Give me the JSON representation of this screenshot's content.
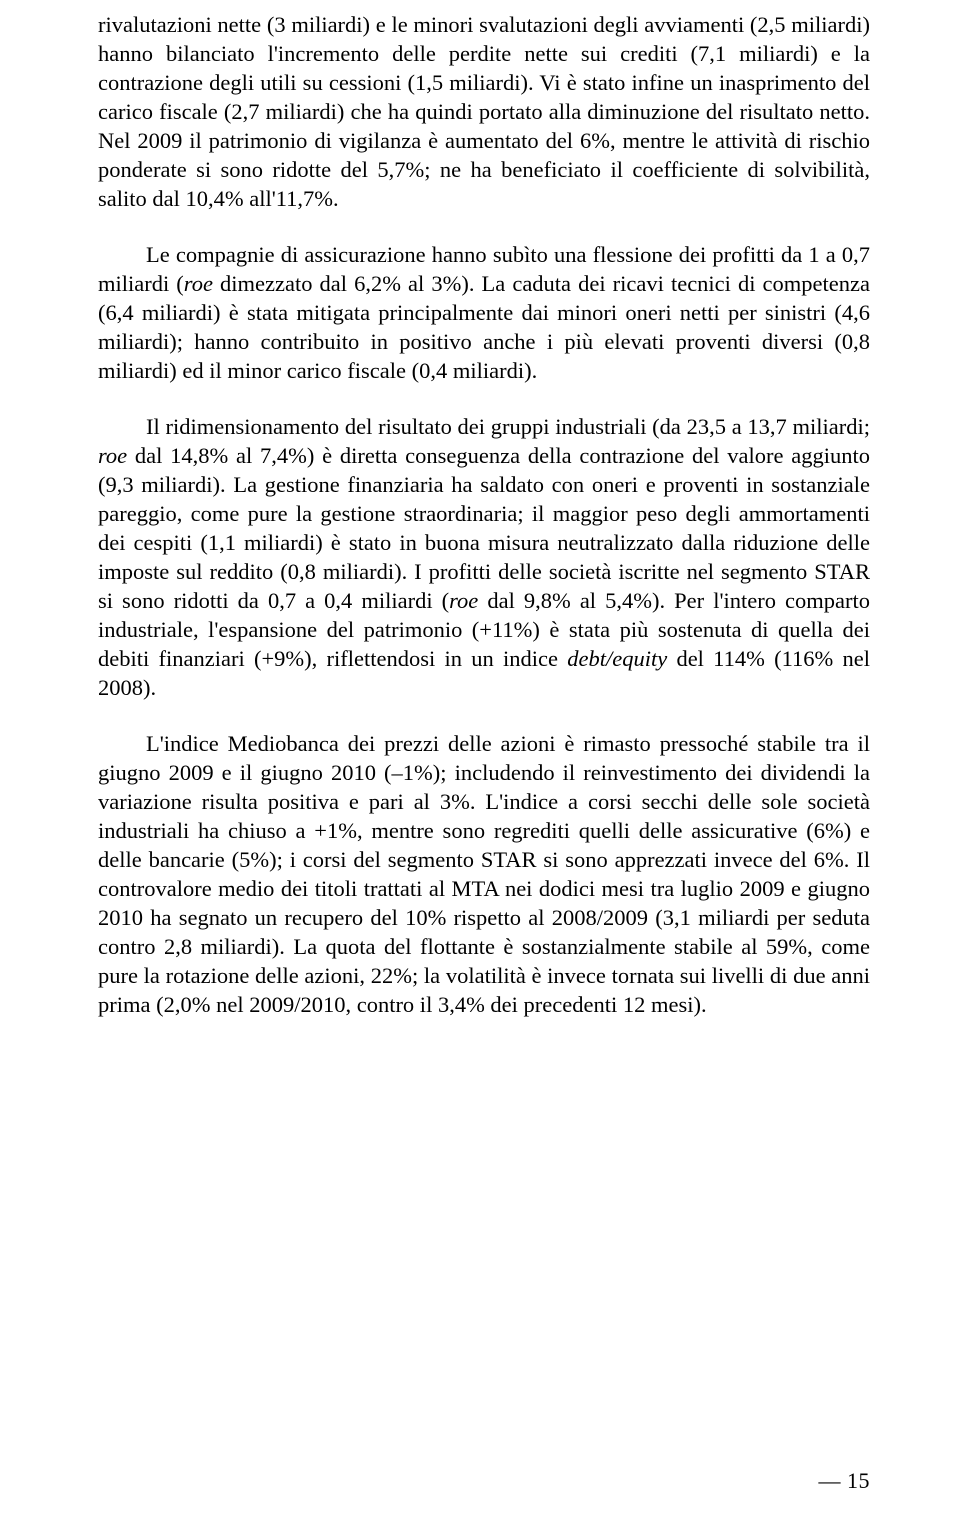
{
  "paragraphs": {
    "p1": {
      "text": "rivalutazioni nette (3 miliardi) e le minori svalutazioni degli avviamenti (2,5 miliardi) hanno bilanciato l'incremento delle perdite nette sui crediti (7,1 miliardi) e la contrazione degli utili su cessioni (1,5 miliardi). Vi è stato infine un inasprimento del carico fiscale (2,7 miliardi) che ha quindi portato alla diminuzione del risultato netto. Nel 2009 il patrimonio di vigilanza è aumentato del 6%, mentre le attività di rischio ponderate si sono ridotte del 5,7%; ne ha beneficiato il coefficiente di solvibilità, salito dal 10,4% all'11,7%."
    },
    "p2": {
      "prefix": "Le compagnie di assicurazione hanno subìto una flessione dei profitti da 1 a 0,7 miliardi (",
      "italic1": "roe",
      "suffix": " dimezzato dal 6,2% al 3%). La caduta dei ricavi tecnici di competenza (6,4 miliardi) è stata mitigata principalmente dai minori oneri netti per sinistri (4,6 miliardi); hanno contribuito in positivo anche i più elevati proventi diversi (0,8 miliardi) ed il minor carico fiscale (0,4 miliardi)."
    },
    "p3": {
      "prefix": "Il ridimensionamento del risultato dei gruppi industriali (da 23,5 a 13,7 miliardi; ",
      "italic1": "roe",
      "mid1": " dal 14,8% al 7,4%) è diretta conseguenza della contrazione del valore aggiunto (9,3 miliardi). La gestione finanziaria ha saldato con oneri e proventi in sostanziale pareggio, come pure la gestione straordinaria; il maggior peso degli ammortamenti dei cespiti (1,1 miliardi) è stato in buona misura neutralizzato dalla riduzione delle imposte sul reddito (0,8 miliardi). I profitti delle società iscritte nel segmento STAR si sono ridotti da 0,7 a 0,4 miliardi (",
      "italic2": "roe",
      "mid2": " dal 9,8% al 5,4%). Per l'intero comparto industriale, l'espansione del patrimonio (+11%) è stata più sostenuta di quella dei debiti finanziari (+9%), riflettendosi in un indice ",
      "italic3": "debt/equity",
      "suffix": " del 114% (116% nel 2008)."
    },
    "p4": {
      "text": "L'indice Mediobanca dei prezzi delle azioni è rimasto pressoché stabile tra il giugno 2009 e il giugno 2010 (–1%); includendo il reinvestimento dei dividendi la variazione risulta positiva e pari al 3%. L'indice a corsi secchi delle sole società industriali ha chiuso a +1%, mentre sono regrediti quelli delle assicurative (6%) e delle bancarie (5%); i corsi del segmento STAR si sono apprezzati invece del 6%. Il controvalore medio dei titoli trattati al MTA nei dodici mesi tra luglio 2009 e giugno 2010 ha segnato un recupero del 10% rispetto al 2008/2009 (3,1 miliardi per seduta contro 2,8 miliardi). La quota del flottante è sostanzialmente stabile al 59%, come pure la rotazione delle azioni, 22%; la volatilità è invece tornata sui livelli di due anni prima (2,0% nel 2009/2010, contro il 3,4% dei precedenti 12 mesi)."
    }
  },
  "pageNumber": "— 15"
}
